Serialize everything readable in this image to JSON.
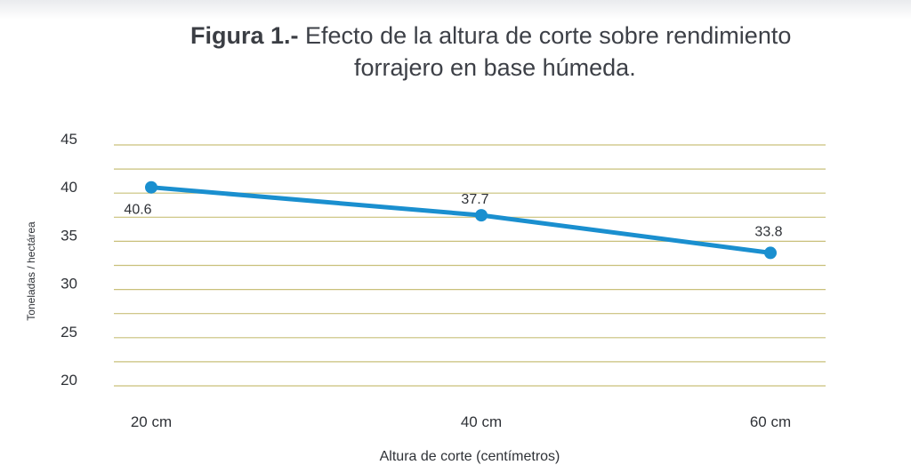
{
  "figure": {
    "label": "Figura 1.-",
    "caption_line1": "Efecto de la altura de corte sobre rendimiento",
    "caption_line2": "forrajero en base húmeda."
  },
  "chart_data": {
    "type": "line",
    "title": "Figura 1.- Efecto de la altura de corte sobre rendimiento forrajero en base húmeda.",
    "xlabel": "Altura de corte (centímetros)",
    "ylabel": "Toneladas / hectárea",
    "categories": [
      "20 cm",
      "40 cm",
      "60 cm"
    ],
    "series": [
      {
        "values": [
          40.6,
          37.7,
          33.8
        ],
        "data_labels": [
          "40.6",
          "37.7",
          "33.8"
        ],
        "color": "#1a8fcf"
      }
    ],
    "ylim": [
      20,
      45
    ],
    "yticks": [
      20,
      25,
      30,
      35,
      40,
      45
    ],
    "grid": true,
    "grid_color": "#c9c07a",
    "legend": "none"
  }
}
